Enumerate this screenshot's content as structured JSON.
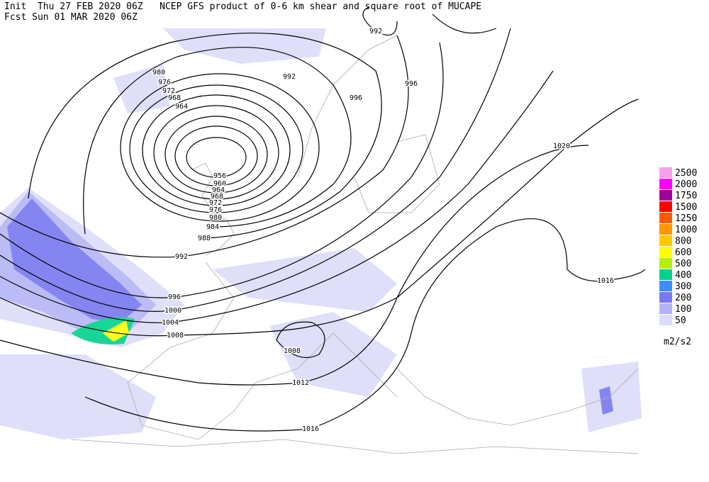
{
  "header": {
    "line1": "Init  Thu 27 FEB 2020 06Z   NCEP GFS product of 0-6 km shear and square root of MUCAPE",
    "line2": "Fcst Sun 01 MAR 2020 06Z"
  },
  "contour_labels": [
    992,
    980,
    976,
    972,
    968,
    964,
    992,
    996,
    996,
    1020,
    956,
    960,
    964,
    968,
    972,
    976,
    980,
    984,
    988,
    992,
    996,
    1000,
    1004,
    1008,
    1016,
    1008,
    1012,
    1016
  ],
  "legend": {
    "items": [
      {
        "value": 2500,
        "color": "#f5a0ee"
      },
      {
        "value": 2000,
        "color": "#ff00ff"
      },
      {
        "value": 1750,
        "color": "#a0009c"
      },
      {
        "value": 1500,
        "color": "#ff0000"
      },
      {
        "value": 1250,
        "color": "#ff5a00"
      },
      {
        "value": 1000,
        "color": "#ff9600"
      },
      {
        "value": 800,
        "color": "#ffc800"
      },
      {
        "value": 600,
        "color": "#ffff00"
      },
      {
        "value": 500,
        "color": "#b4f000"
      },
      {
        "value": 400,
        "color": "#00d28c"
      },
      {
        "value": 300,
        "color": "#3c8cff"
      },
      {
        "value": 200,
        "color": "#7878f0"
      },
      {
        "value": 100,
        "color": "#b4b4f5"
      },
      {
        "value": 50,
        "color": "#dcdcfa"
      }
    ],
    "unit": "m2/s2"
  }
}
